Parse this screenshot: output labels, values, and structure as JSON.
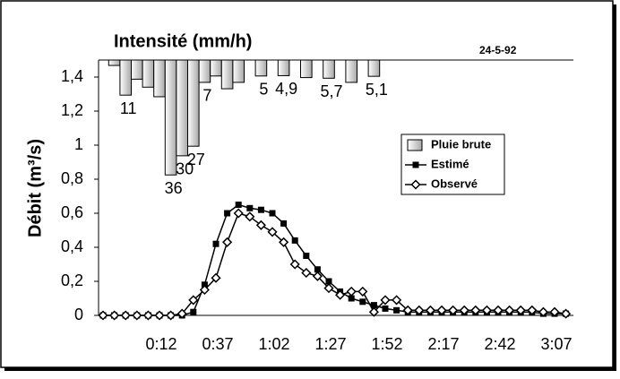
{
  "chart_data": {
    "type": "hyetograph-hydrograph",
    "title": "Intensité (mm/h)",
    "annotation": "24-5-92",
    "y_label": "Débit (m³/s)",
    "categories": [
      null,
      null,
      null,
      null,
      null,
      "0:12",
      null,
      null,
      null,
      null,
      "0:37",
      null,
      null,
      null,
      null,
      "1:02",
      null,
      null,
      null,
      null,
      "1:27",
      null,
      null,
      null,
      null,
      "1:52",
      null,
      null,
      null,
      null,
      "2:17",
      null,
      null,
      null,
      null,
      "2:42",
      null,
      null,
      null,
      null,
      "3:07",
      null
    ],
    "ylim": [
      0,
      1.5
    ],
    "yticks": [
      0,
      {
        "value": 0.2,
        "label": "0,2"
      },
      {
        "value": 0.4,
        "label": "0,4"
      },
      {
        "value": 0.6,
        "label": "0,6"
      },
      {
        "value": 0.8,
        "label": "0,8"
      },
      1,
      {
        "value": 1.2,
        "label": "1,2"
      },
      {
        "value": 1.4,
        "label": "1,4"
      }
    ],
    "y2lim": [
      0,
      80
    ],
    "y2_inverted": true,
    "series": [
      {
        "name": "Pluie brute",
        "kind": "bar",
        "axis": "y2",
        "color": "#ffffff",
        "values": [
          1.7,
          11,
          6,
          8.5,
          11.5,
          36,
          30,
          27,
          7,
          5,
          9,
          7,
          null,
          5,
          null,
          4.9,
          null,
          5.5,
          null,
          5.7,
          null,
          7,
          null,
          5.1,
          null,
          null,
          null,
          null,
          null,
          null,
          null,
          null,
          null,
          null,
          null,
          null,
          null,
          null,
          null,
          null,
          null,
          null
        ],
        "value_labels": [
          null,
          "11",
          null,
          null,
          null,
          "36",
          "30",
          "27",
          "7",
          null,
          null,
          null,
          null,
          "5",
          null,
          "4,9",
          null,
          null,
          null,
          "5,7",
          null,
          null,
          null,
          "5,1",
          null,
          null,
          null,
          null,
          null,
          null,
          null,
          null,
          null,
          null,
          null,
          null,
          null,
          null,
          null,
          null,
          null,
          null
        ]
      },
      {
        "name": "Estimé",
        "kind": "line",
        "marker": "square",
        "color": "#000000",
        "values": [
          0,
          0,
          0,
          0,
          0,
          0,
          0,
          0,
          0.02,
          0.18,
          0.42,
          0.6,
          0.65,
          0.63,
          0.62,
          0.6,
          0.54,
          0.44,
          0.35,
          0.27,
          0.2,
          0.14,
          0.1,
          0.08,
          0.06,
          0.04,
          0.03,
          0.02,
          0.02,
          0.02,
          0.02,
          0.02,
          0.02,
          0.02,
          0.02,
          0.02,
          0.02,
          0.02,
          0.02,
          0.01,
          0.01,
          0.01
        ]
      },
      {
        "name": "Observé",
        "kind": "line",
        "marker": "diamond",
        "color": "#000000",
        "values": [
          0,
          0,
          0,
          0,
          0,
          0,
          0,
          0.01,
          0.09,
          0.15,
          0.22,
          0.43,
          0.6,
          0.58,
          0.53,
          0.49,
          0.43,
          0.3,
          0.25,
          0.23,
          0.16,
          0.12,
          0.14,
          0.14,
          0.02,
          0.09,
          0.09,
          0.03,
          0.03,
          0.03,
          0.03,
          0.03,
          0.03,
          0.03,
          0.03,
          0.03,
          0.03,
          0.03,
          0.03,
          0.02,
          0.02,
          0.01
        ]
      }
    ]
  }
}
